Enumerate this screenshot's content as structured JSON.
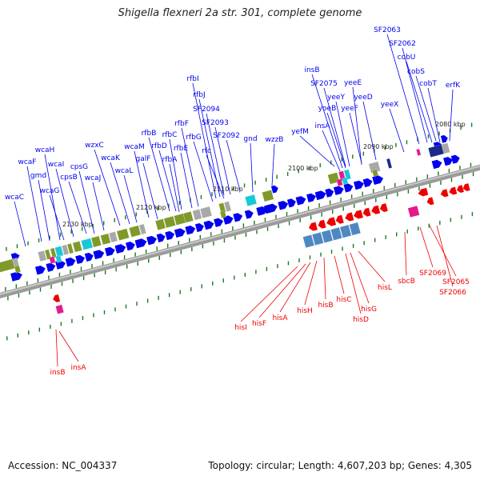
{
  "title": "Shigella flexneri 2a str. 301, complete genome",
  "footer": {
    "accession": "Accession: NC_004337",
    "summary": "Topology: circular; Length: 4,607,203 bp; Genes: 4,305"
  },
  "colors": {
    "forward_gene": "#0000ee",
    "reverse_gene": "#ee0000",
    "backbone": "#8a8a8a",
    "tick": "#1a7a1a",
    "cog_olive": "#7f9a2a",
    "cog_grey": "#a8a8a8",
    "cog_cyan": "#19c8d8",
    "cog_magenta": "#e4198c",
    "cog_steel": "#4f88c0",
    "cog_navy": "#1a2a8a"
  },
  "scale": {
    "start_kbp": 2135,
    "end_kbp": 2076,
    "labels": [
      "2130 kbp",
      "2120 kbp",
      "2110 kbp",
      "2100 kbp",
      "2090 kbp",
      "2080 kbp"
    ]
  },
  "forward_gene_labels": [
    "wcaC",
    "wcaF",
    "gmd",
    "wcaH",
    "wcaG",
    "wcaI",
    "cpsB",
    "cpsG",
    "wcaJ",
    "wzxC",
    "wcaK",
    "wcaL",
    "wcaM",
    "galF",
    "rfbB",
    "rfbD",
    "rfbC",
    "rfbA",
    "rfbE",
    "rfbF",
    "rfbI",
    "rfbJ",
    "SF2094",
    "rfbG",
    "SF2093",
    "rfc",
    "SF2092",
    "gnd",
    "wzzB",
    "yefM",
    "insB",
    "SF2075",
    "insA",
    "yoeB",
    "yeeY",
    "yeeE",
    "yeeF",
    "yeeD",
    "yeeX",
    "SF2063",
    "SF2062",
    "cobU",
    "cobS",
    "cobT",
    "erfK"
  ],
  "reverse_gene_labels": [
    "insB",
    "insA",
    "hisI",
    "hisF",
    "hisA",
    "hisH",
    "hisB",
    "hisC",
    "hisD",
    "hisG",
    "hisL",
    "sbcB",
    "SF2069",
    "SF2065",
    "SF2066"
  ]
}
